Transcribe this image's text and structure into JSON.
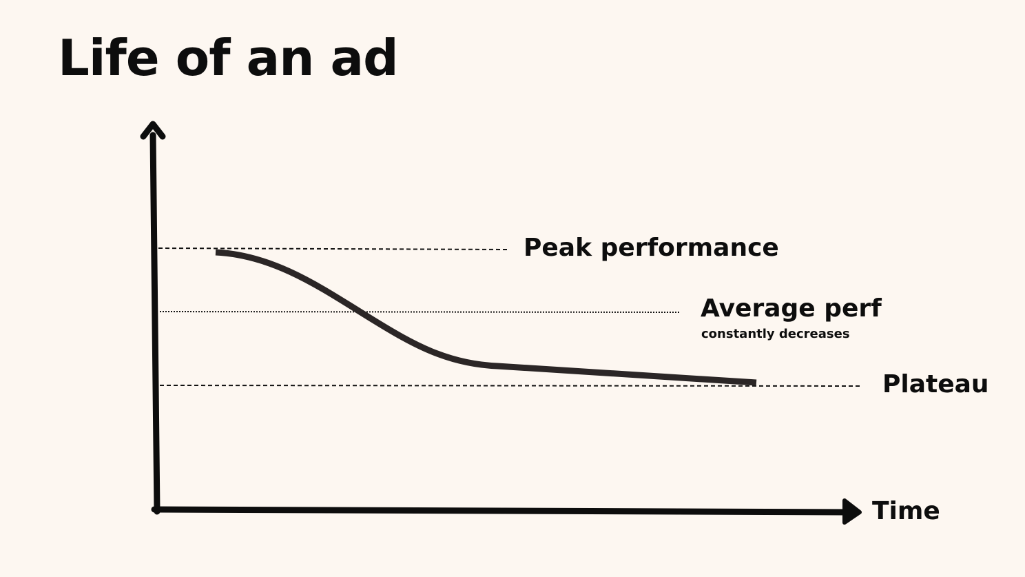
{
  "title": "Life of an ad",
  "levels": {
    "peak": {
      "label": "Peak performance"
    },
    "average": {
      "label": "Average perf",
      "note": "constantly decreases"
    },
    "plateau": {
      "label": "Plateau"
    }
  },
  "axes": {
    "x_label": "Time"
  },
  "colors": {
    "background": "#fdf7f1",
    "ink": "#0d0d0d",
    "curve": "#2b2626"
  }
}
